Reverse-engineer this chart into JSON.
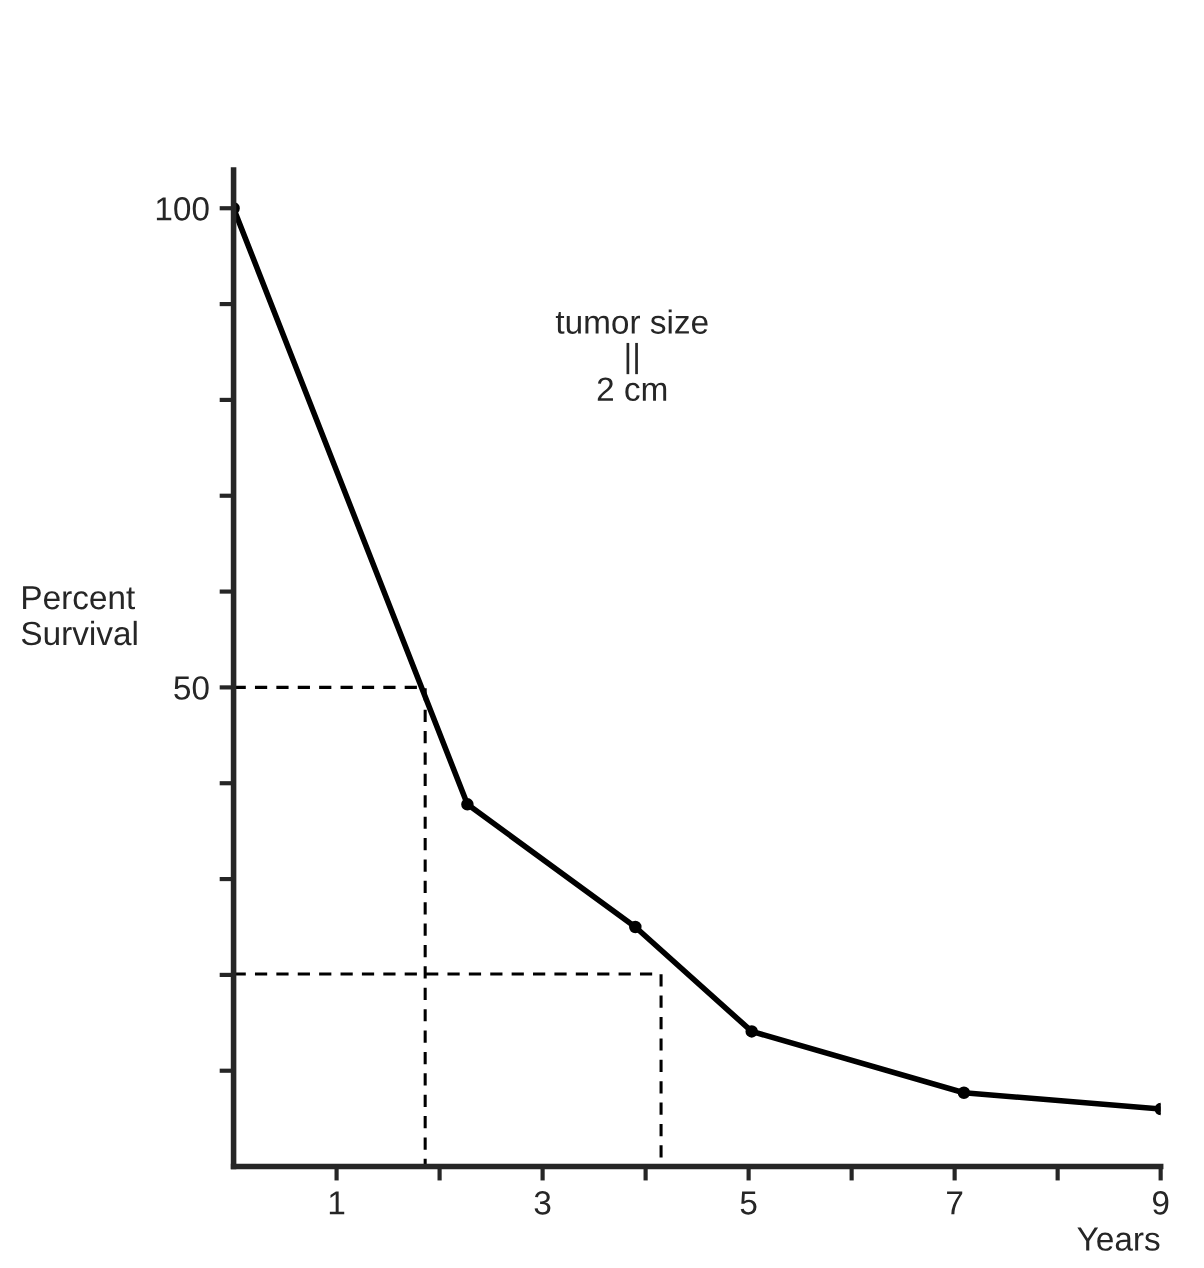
{
  "chart_data": {
    "type": "line",
    "xlabel": "Years",
    "ylabel": "Percent\nSurvival",
    "annotations": [
      "tumor size\n||\n2 cm"
    ],
    "series": [
      {
        "color": "#000000",
        "x": [
          0,
          2.27,
          3.9,
          5.03,
          7.09,
          9.0
        ],
        "values": [
          100,
          37.8,
          25,
          14.1,
          7.7,
          6.0
        ],
        "marker": "circle",
        "line_style": "solid"
      },
      {
        "color": "#000000",
        "x": [
          0,
          1.86,
          1.86
        ],
        "values": [
          50,
          50,
          0
        ],
        "marker": "none",
        "line_style": "dashed"
      },
      {
        "color": "#000000",
        "x": [
          0,
          4.15,
          4.15
        ],
        "values": [
          20.1,
          20.1,
          0
        ],
        "marker": "none",
        "line_style": "dashed"
      }
    ],
    "xlim": [
      0,
      9
    ],
    "ylim": [
      0,
      104
    ],
    "xticks": [
      1,
      {
        "value": 2,
        "label": null
      },
      3,
      {
        "value": 4,
        "label": null
      },
      5,
      {
        "value": 6,
        "label": null
      },
      7,
      {
        "value": 8,
        "label": null
      },
      9
    ],
    "yticks": [
      {
        "value": 10,
        "label": null
      },
      {
        "value": 20,
        "label": null
      },
      {
        "value": 30,
        "label": null
      },
      {
        "value": 40,
        "label": null
      },
      50,
      {
        "value": 60,
        "label": null
      },
      {
        "value": 70,
        "label": null
      },
      {
        "value": 80,
        "label": null
      },
      {
        "value": 90,
        "label": null
      },
      100
    ],
    "grid": false
  }
}
